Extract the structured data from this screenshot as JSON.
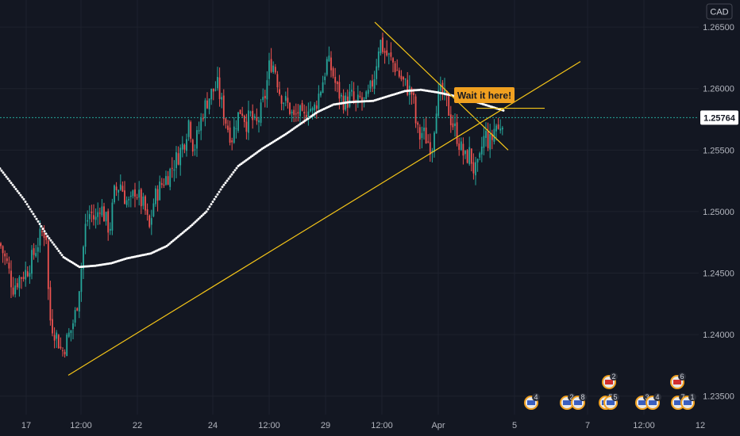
{
  "chart_data": {
    "type": "candlestick",
    "symbol_currency": "CAD",
    "current_price": "1.25764",
    "ylim": [
      1.2335,
      1.2672
    ],
    "y_ticks": [
      "1.23500",
      "1.24000",
      "1.24500",
      "1.25000",
      "1.25500",
      "1.26000",
      "1.26500"
    ],
    "x_ticks": [
      "17",
      "12:00",
      "22",
      "24",
      "12:00",
      "29",
      "12:00",
      "Apr",
      "5",
      "7",
      "12:00",
      "12"
    ],
    "annotation": "Wait it here!",
    "colors": {
      "background": "#131722",
      "up": "#26a69a",
      "down": "#ef5350",
      "moving_average": "#ffffff",
      "trendlines": "#f5c518",
      "note_box": "#f0a020"
    },
    "close_path": [
      [
        0,
        1.2474
      ],
      [
        10,
        1.2455
      ],
      [
        16,
        1.2438
      ],
      [
        24,
        1.2446
      ],
      [
        34,
        1.2452
      ],
      [
        44,
        1.2468
      ],
      [
        52,
        1.2482
      ],
      [
        58,
        1.2484
      ],
      [
        62,
        1.2415
      ],
      [
        67,
        1.2405
      ],
      [
        72,
        1.2398
      ],
      [
        78,
        1.2385
      ],
      [
        84,
        1.2395
      ],
      [
        90,
        1.2405
      ],
      [
        96,
        1.242
      ],
      [
        102,
        1.2452
      ],
      [
        108,
        1.249
      ],
      [
        114,
        1.25
      ],
      [
        120,
        1.2492
      ],
      [
        126,
        1.2506
      ],
      [
        132,
        1.2495
      ],
      [
        138,
        1.2485
      ],
      [
        144,
        1.2515
      ],
      [
        152,
        1.2523
      ],
      [
        158,
        1.251
      ],
      [
        164,
        1.2505
      ],
      [
        170,
        1.2518
      ],
      [
        176,
        1.251
      ],
      [
        182,
        1.2503
      ],
      [
        188,
        1.2485
      ],
      [
        194,
        1.251
      ],
      [
        200,
        1.2518
      ],
      [
        206,
        1.2525
      ],
      [
        212,
        1.253
      ],
      [
        218,
        1.2538
      ],
      [
        224,
        1.2545
      ],
      [
        232,
        1.2557
      ],
      [
        238,
        1.2575
      ],
      [
        244,
        1.255
      ],
      [
        250,
        1.2565
      ],
      [
        256,
        1.2582
      ],
      [
        262,
        1.2592
      ],
      [
        268,
        1.2598
      ],
      [
        274,
        1.2602
      ],
      [
        280,
        1.2585
      ],
      [
        286,
        1.257
      ],
      [
        292,
        1.256
      ],
      [
        298,
        1.2575
      ],
      [
        304,
        1.2585
      ],
      [
        310,
        1.2572
      ],
      [
        316,
        1.2578
      ],
      [
        322,
        1.2568
      ],
      [
        328,
        1.258
      ],
      [
        334,
        1.2595
      ],
      [
        340,
        1.2622
      ],
      [
        346,
        1.2618
      ],
      [
        352,
        1.2598
      ],
      [
        358,
        1.259
      ],
      [
        364,
        1.2585
      ],
      [
        370,
        1.2575
      ],
      [
        376,
        1.2582
      ],
      [
        382,
        1.2572
      ],
      [
        388,
        1.2588
      ],
      [
        394,
        1.258
      ],
      [
        400,
        1.2592
      ],
      [
        406,
        1.2605
      ],
      [
        412,
        1.2622
      ],
      [
        418,
        1.2615
      ],
      [
        424,
        1.26
      ],
      [
        430,
        1.2592
      ],
      [
        436,
        1.2588
      ],
      [
        442,
        1.2595
      ],
      [
        448,
        1.2585
      ],
      [
        454,
        1.2592
      ],
      [
        460,
        1.2588
      ],
      [
        466,
        1.2598
      ],
      [
        472,
        1.2612
      ],
      [
        478,
        1.264
      ],
      [
        484,
        1.263
      ],
      [
        490,
        1.2625
      ],
      [
        496,
        1.262
      ],
      [
        502,
        1.2612
      ],
      [
        508,
        1.2605
      ],
      [
        514,
        1.26
      ],
      [
        520,
        1.2595
      ],
      [
        524,
        1.257
      ],
      [
        528,
        1.256
      ],
      [
        532,
        1.2565
      ],
      [
        538,
        1.2558
      ],
      [
        544,
        1.2552
      ],
      [
        550,
        1.259
      ],
      [
        556,
        1.2597
      ],
      [
        562,
        1.259
      ],
      [
        568,
        1.2575
      ],
      [
        574,
        1.2565
      ],
      [
        580,
        1.2552
      ],
      [
        586,
        1.2543
      ],
      [
        592,
        1.2548
      ],
      [
        596,
        1.2535
      ],
      [
        600,
        1.2532
      ],
      [
        604,
        1.254
      ],
      [
        608,
        1.2558
      ],
      [
        612,
        1.2562
      ],
      [
        616,
        1.2555
      ],
      [
        620,
        1.256
      ],
      [
        624,
        1.2572
      ],
      [
        628,
        1.2565
      ],
      [
        632,
        1.2576
      ],
      [
        635,
        1.2576
      ]
    ],
    "moving_average": [
      [
        0,
        1.2535
      ],
      [
        30,
        1.251
      ],
      [
        60,
        1.248
      ],
      [
        80,
        1.2463
      ],
      [
        100,
        1.2455
      ],
      [
        120,
        1.2456
      ],
      [
        140,
        1.2458
      ],
      [
        160,
        1.2462
      ],
      [
        190,
        1.2466
      ],
      [
        210,
        1.2472
      ],
      [
        240,
        1.2488
      ],
      [
        260,
        1.25
      ],
      [
        280,
        1.252
      ],
      [
        300,
        1.2537
      ],
      [
        330,
        1.2551
      ],
      [
        360,
        1.2563
      ],
      [
        380,
        1.2572
      ],
      [
        400,
        1.2581
      ],
      [
        420,
        1.2587
      ],
      [
        440,
        1.2589
      ],
      [
        470,
        1.259
      ],
      [
        490,
        1.2594
      ],
      [
        510,
        1.2598
      ],
      [
        530,
        1.2599
      ],
      [
        550,
        1.2597
      ],
      [
        580,
        1.2593
      ],
      [
        610,
        1.2587
      ],
      [
        635,
        1.2582
      ]
    ],
    "trendlines": [
      {
        "from": [
          86,
          1.2367
        ],
        "to": [
          731,
          1.2622
        ]
      },
      {
        "from": [
          472,
          1.2654
        ],
        "to": [
          640,
          1.255
        ]
      },
      {
        "from": [
          600,
          1.2584
        ],
        "to": [
          686,
          1.2584
        ]
      }
    ],
    "events": [
      {
        "x": 669,
        "row": "low",
        "count": "4"
      },
      {
        "x": 714,
        "row": "low",
        "count": "2"
      },
      {
        "x": 728,
        "row": "low",
        "count": "8"
      },
      {
        "x": 763,
        "row": "low",
        "count": "5"
      },
      {
        "x": 769,
        "row": "low",
        "count": "5"
      },
      {
        "x": 767,
        "row": "high",
        "count": "2"
      },
      {
        "x": 809,
        "row": "low",
        "count": "3"
      },
      {
        "x": 822,
        "row": "low",
        "count": "4"
      },
      {
        "x": 854,
        "row": "low",
        "count": "7"
      },
      {
        "x": 866,
        "row": "low",
        "count": "1"
      },
      {
        "x": 853,
        "row": "high",
        "count": "6"
      }
    ]
  }
}
